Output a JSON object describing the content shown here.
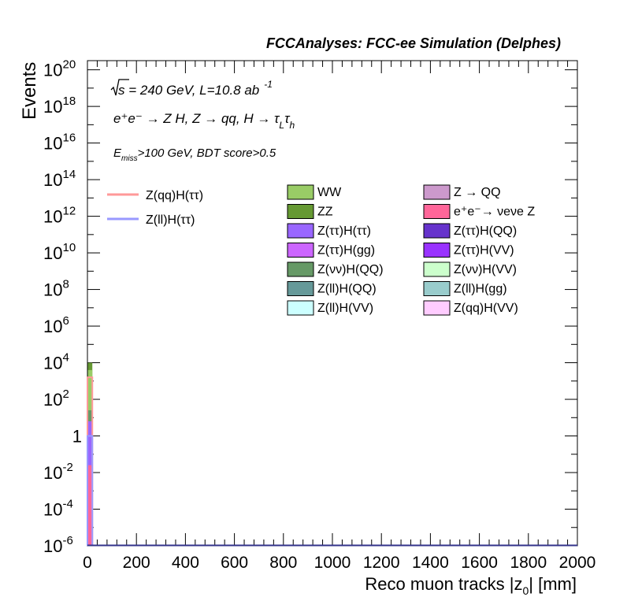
{
  "chart_data": {
    "type": "bar",
    "title": "FCCAnalyses: FCC-ee Simulation (Delphes)",
    "xlabel": "Reco muon tracks |z",
    "xlabel_sub": "0",
    "xlabel_tail": "| [mm]",
    "ylabel": "Events",
    "xlim": [
      0,
      2000
    ],
    "ylim_log10": [
      -6,
      20.5
    ],
    "y_scale": "log",
    "x_ticks": [
      0,
      200,
      400,
      600,
      800,
      1000,
      1200,
      1400,
      1600,
      1800,
      2000
    ],
    "y_ticks": [
      {
        "base": "10",
        "exp": "20",
        "log": 20
      },
      {
        "base": "10",
        "exp": "18",
        "log": 18
      },
      {
        "base": "10",
        "exp": "16",
        "log": 16
      },
      {
        "base": "10",
        "exp": "14",
        "log": 14
      },
      {
        "base": "10",
        "exp": "12",
        "log": 12
      },
      {
        "base": "10",
        "exp": "10",
        "log": 10
      },
      {
        "base": "10",
        "exp": "8",
        "log": 8
      },
      {
        "base": "10",
        "exp": "6",
        "log": 6
      },
      {
        "base": "10",
        "exp": "4",
        "log": 4
      },
      {
        "base": "10",
        "exp": "2",
        "log": 2
      },
      {
        "base": "1",
        "exp": "",
        "log": 0
      },
      {
        "base": "10",
        "exp": "-2",
        "log": -2
      },
      {
        "base": "10",
        "exp": "-4",
        "log": -4
      },
      {
        "base": "10",
        "exp": "-6",
        "log": -6
      }
    ],
    "annotations": {
      "energy_prefix": "s = 240 GeV, L=10.8 ab",
      "energy_sup": "-1",
      "process": "e⁺e⁻ → Z H, Z → qq, H → τ",
      "process_sub1": "L",
      "process_tau": "τ",
      "process_sub2": "h",
      "cut_prefix": "E",
      "cut_sub": "miss",
      "cut_tail": ">100 GeV, BDT score>0.5"
    },
    "legend_signals": [
      {
        "name": "Z(qq)H(ττ)",
        "color": "#ff9999"
      },
      {
        "name": "Z(ll)H(ττ)",
        "color": "#9999ff"
      }
    ],
    "legend_backgrounds": [
      {
        "name": "WW",
        "color": "#99cc66"
      },
      {
        "name": "Z → QQ",
        "color": "#cc99cc"
      },
      {
        "name": "ZZ",
        "color": "#669933"
      },
      {
        "name": "e⁺e⁻→ νeνe Z",
        "color": "#ff6699"
      },
      {
        "name": "Z(ττ)H(ττ)",
        "color": "#9966ff"
      },
      {
        "name": "Z(ττ)H(QQ)",
        "color": "#6633cc"
      },
      {
        "name": "Z(ττ)H(gg)",
        "color": "#cc66ff"
      },
      {
        "name": "Z(ττ)H(VV)",
        "color": "#9933ff"
      },
      {
        "name": "Z(νν)H(QQ)",
        "color": "#669966"
      },
      {
        "name": "Z(νν)H(VV)",
        "color": "#ccffcc"
      },
      {
        "name": "Z(ll)H(QQ)",
        "color": "#669999"
      },
      {
        "name": "Z(ll)H(gg)",
        "color": "#99cccc"
      },
      {
        "name": "Z(ll)H(VV)",
        "color": "#ccffff"
      },
      {
        "name": "Z(qq)H(VV)",
        "color": "#ffccff"
      }
    ],
    "stack_first_bin": {
      "x_range": [
        0,
        20
      ],
      "components": [
        {
          "name": "ZZ",
          "log_top": 4.0,
          "color": "#669933"
        },
        {
          "name": "WW",
          "log_top": 3.6,
          "color": "#99cc66"
        },
        {
          "name": "Z(νν)H(QQ)",
          "log_top": 1.4,
          "color": "#669966"
        },
        {
          "name": "Z(ττ)H(ττ)",
          "log_top": 0.8,
          "color": "#9966ff"
        },
        {
          "name": "e⁺e⁻→ νeνe Z",
          "log_top": -1.6,
          "color": "#ff6699"
        }
      ]
    },
    "signal_first_bin": [
      {
        "name": "Z(qq)H(ττ)",
        "x_range": [
          0,
          20
        ],
        "log_value": 3.2,
        "color": "#ff9999"
      },
      {
        "name": "Z(ll)H(ττ)",
        "x_range": [
          0,
          20
        ],
        "log_value": 0.0,
        "color": "#9999ff"
      }
    ]
  }
}
